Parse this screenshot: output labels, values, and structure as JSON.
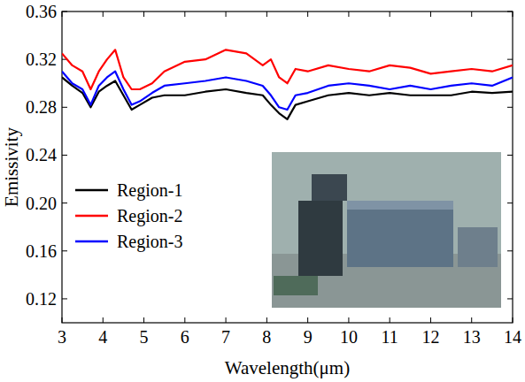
{
  "chart_data": {
    "type": "line",
    "x_label": "Wavelength(μm)",
    "y_label": "Emissivity",
    "x": [
      3,
      3.25,
      3.5,
      3.7,
      3.9,
      4.1,
      4.3,
      4.5,
      4.7,
      4.9,
      5.2,
      5.5,
      6,
      6.5,
      7,
      7.5,
      7.9,
      8.1,
      8.3,
      8.5,
      8.7,
      9,
      9.5,
      10,
      10.5,
      11,
      11.5,
      12,
      12.5,
      13,
      13.5,
      14
    ],
    "series": [
      {
        "name": "Region-1",
        "color": "#000000",
        "values": [
          0.305,
          0.298,
          0.292,
          0.28,
          0.293,
          0.298,
          0.302,
          0.29,
          0.278,
          0.282,
          0.288,
          0.29,
          0.29,
          0.293,
          0.295,
          0.292,
          0.29,
          0.282,
          0.275,
          0.27,
          0.282,
          0.285,
          0.29,
          0.292,
          0.29,
          0.292,
          0.29,
          0.29,
          0.29,
          0.293,
          0.292,
          0.293
        ]
      },
      {
        "name": "Region-2",
        "color": "#ff0000",
        "values": [
          0.325,
          0.315,
          0.31,
          0.295,
          0.31,
          0.32,
          0.328,
          0.305,
          0.295,
          0.295,
          0.3,
          0.31,
          0.318,
          0.32,
          0.328,
          0.325,
          0.315,
          0.32,
          0.305,
          0.3,
          0.312,
          0.31,
          0.315,
          0.312,
          0.31,
          0.315,
          0.313,
          0.308,
          0.31,
          0.312,
          0.31,
          0.315
        ]
      },
      {
        "name": "Region-3",
        "color": "#0000ff",
        "values": [
          0.31,
          0.3,
          0.295,
          0.282,
          0.298,
          0.305,
          0.31,
          0.295,
          0.282,
          0.285,
          0.292,
          0.298,
          0.3,
          0.302,
          0.305,
          0.302,
          0.298,
          0.29,
          0.28,
          0.278,
          0.29,
          0.292,
          0.298,
          0.3,
          0.298,
          0.295,
          0.298,
          0.295,
          0.298,
          0.3,
          0.298,
          0.305
        ]
      }
    ],
    "xlim": [
      3,
      14
    ],
    "xticks": [
      3,
      4,
      5,
      6,
      7,
      8,
      9,
      10,
      11,
      12,
      13,
      14
    ],
    "ylim": [
      0.1,
      0.36
    ],
    "yticks": [
      0.12,
      0.16,
      {
        "value": 0.2,
        "label": "0.20"
      },
      0.24,
      0.28,
      0.32,
      0.36
    ],
    "grid": false,
    "legend": "left"
  }
}
